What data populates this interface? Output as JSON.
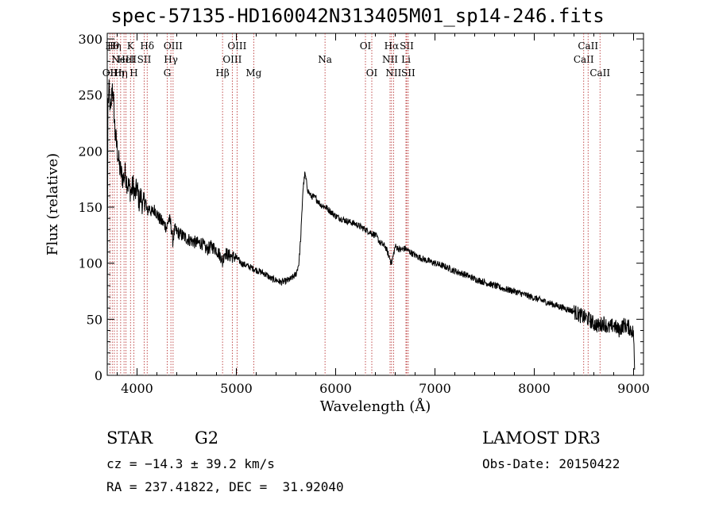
{
  "chart_data": {
    "type": "line",
    "title": "spec-57135-HD160042N313405M01_sp14-246.fits",
    "xlabel": "Wavelength (Å)",
    "ylabel": "Flux (relative)",
    "xlim": [
      3700,
      9100
    ],
    "ylim": [
      0,
      305
    ],
    "xticks": [
      4000,
      5000,
      6000,
      7000,
      8000,
      9000
    ],
    "yticks": [
      0,
      50,
      100,
      150,
      200,
      250,
      300
    ],
    "line_color": "#000000",
    "marker_color": "#b22222",
    "series": [
      {
        "x": [
          3700,
          3705,
          3720,
          3735,
          3750,
          3765,
          3780,
          3795,
          3810,
          3825,
          3840,
          3860,
          3880,
          3900,
          3920,
          3940,
          3960,
          3980,
          4000,
          4020,
          4040,
          4060,
          4080,
          4100,
          4120,
          4150,
          4180,
          4210,
          4240,
          4270,
          4300,
          4320,
          4340,
          4360,
          4380,
          4400,
          4450,
          4500,
          4550,
          4600,
          4650,
          4700,
          4750,
          4800,
          4850,
          4861,
          4880,
          4920,
          4960,
          5000,
          5050,
          5100,
          5150,
          5200,
          5250,
          5300,
          5350,
          5400,
          5450,
          5500,
          5550,
          5600,
          5630,
          5650,
          5670,
          5690,
          5700,
          5720,
          5750,
          5800,
          5850,
          5900,
          5950,
          6000,
          6100,
          6200,
          6300,
          6400,
          6450,
          6500,
          6563,
          6600,
          6650,
          6700,
          6750,
          6800,
          6900,
          7000,
          7100,
          7200,
          7300,
          7400,
          7500,
          7600,
          7700,
          7800,
          7900,
          8000,
          8100,
          8200,
          8300,
          8400,
          8450,
          8500,
          8550,
          8600,
          8650,
          8700,
          8750,
          8800,
          8850,
          8900,
          8950,
          9000,
          9010
        ],
        "y": [
          5,
          240,
          255,
          230,
          260,
          240,
          215,
          205,
          195,
          185,
          180,
          175,
          180,
          172,
          168,
          163,
          170,
          160,
          168,
          155,
          160,
          150,
          158,
          145,
          150,
          145,
          148,
          142,
          138,
          135,
          132,
          140,
          135,
          120,
          130,
          128,
          125,
          122,
          120,
          118,
          118,
          112,
          115,
          112,
          105,
          100,
          110,
          107,
          106,
          105,
          100,
          98,
          96,
          94,
          92,
          90,
          86,
          85,
          83,
          84,
          86,
          90,
          100,
          125,
          165,
          180,
          175,
          165,
          160,
          158,
          152,
          150,
          146,
          142,
          138,
          135,
          130,
          125,
          118,
          115,
          100,
          115,
          112,
          113,
          110,
          107,
          103,
          100,
          97,
          93,
          90,
          86,
          83,
          80,
          77,
          75,
          72,
          69,
          66,
          63,
          60,
          57,
          54,
          52,
          50,
          46,
          44,
          47,
          42,
          45,
          40,
          45,
          43,
          38,
          5
        ]
      }
    ],
    "lines": [
      {
        "wave": 3727,
        "label": "OII",
        "row": 3
      },
      {
        "wave": 3750,
        "label": "Hθ",
        "row": 1
      },
      {
        "wave": 3771,
        "label": "Hη",
        "row": 1
      },
      {
        "wave": 3798,
        "label": "Hη",
        "row": 3
      },
      {
        "wave": 3835,
        "label": "Hη",
        "row": 3
      },
      {
        "wave": 3869,
        "label": "NeIII",
        "row": 2
      },
      {
        "wave": 3889,
        "label": "HeI",
        "row": 2
      },
      {
        "wave": 3934,
        "label": "K",
        "row": 1
      },
      {
        "wave": 3968,
        "label": "H",
        "row": 3
      },
      {
        "wave": 4072,
        "label": "SII",
        "row": 2
      },
      {
        "wave": 4102,
        "label": "Hδ",
        "row": 1
      },
      {
        "wave": 4304,
        "label": "G",
        "row": 3
      },
      {
        "wave": 4341,
        "label": "Hγ",
        "row": 2
      },
      {
        "wave": 4363,
        "label": "OIII",
        "row": 1
      },
      {
        "wave": 4861,
        "label": "Hβ",
        "row": 3
      },
      {
        "wave": 4959,
        "label": "OIII",
        "row": 2
      },
      {
        "wave": 5007,
        "label": "OIII",
        "row": 1
      },
      {
        "wave": 5175,
        "label": "Mg",
        "row": 3
      },
      {
        "wave": 5893,
        "label": "Na",
        "row": 2
      },
      {
        "wave": 6300,
        "label": "OI",
        "row": 1
      },
      {
        "wave": 6364,
        "label": "OI",
        "row": 3
      },
      {
        "wave": 6548,
        "label": "NII",
        "row": 2
      },
      {
        "wave": 6563,
        "label": "Hα",
        "row": 1
      },
      {
        "wave": 6583,
        "label": "NII",
        "row": 3
      },
      {
        "wave": 6708,
        "label": "Li",
        "row": 2
      },
      {
        "wave": 6716,
        "label": "SII",
        "row": 1
      },
      {
        "wave": 6731,
        "label": "SII",
        "row": 3
      },
      {
        "wave": 8498,
        "label": "CaII",
        "row": 2
      },
      {
        "wave": 8542,
        "label": "CaII",
        "row": 1
      },
      {
        "wave": 8662,
        "label": "CaII",
        "row": 3
      }
    ]
  },
  "info": {
    "class": "STAR",
    "subclass": "G2",
    "survey": "LAMOST DR3",
    "cz": "cz = −14.3 ± 39.2 km/s",
    "obs_date": "Obs-Date: 20150422",
    "coords": "RA = 237.41822, DEC =  31.92040"
  }
}
